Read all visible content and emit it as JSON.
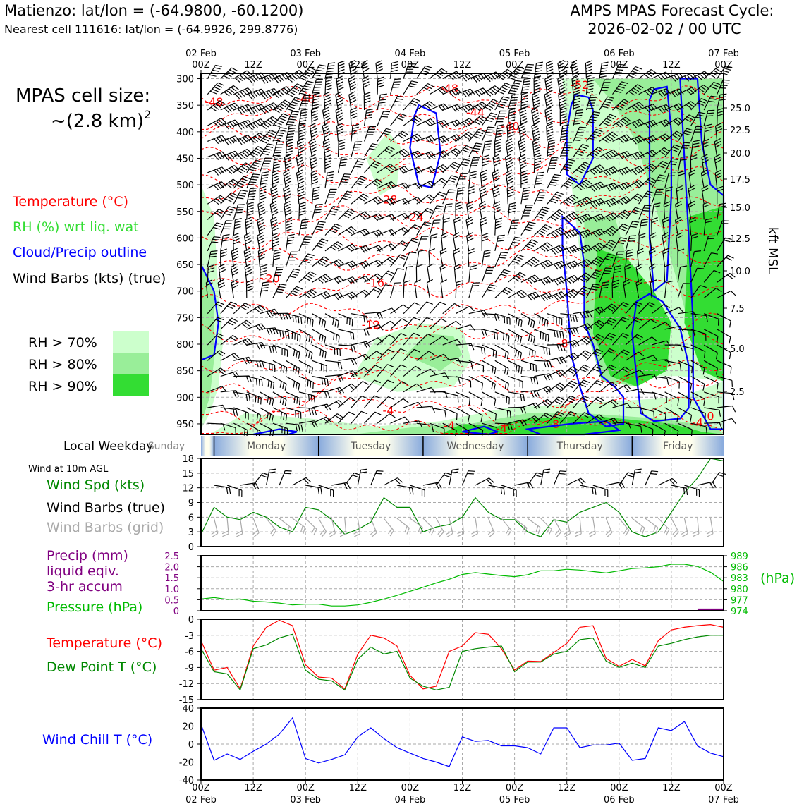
{
  "header": {
    "station_line": "Matienzo: lat/lon = (-64.9800, -60.1200)",
    "cell_line": "Nearest cell 111616: lat/lon = (-64.9926, 299.8776)",
    "cycle_title": "AMPS MPAS Forecast Cycle:",
    "cycle_time": "2026-02-02 / 00 UTC"
  },
  "side": {
    "cell_size_label": "MPAS cell size:",
    "cell_size_value": "~(2.8 km)",
    "cell_size_exp": "2",
    "legend_temp": "Temperature (°C)",
    "legend_rh": "RH (%) wrt liq. wat",
    "legend_cloud": "Cloud/Precip outline",
    "legend_wind": "Wind Barbs (kts) (true)",
    "rh_70": "RH > 70%",
    "rh_80": "RH > 80%",
    "rh_90": "RH > 90%",
    "local_weekday": "Local Weekday",
    "wind_10m": "Wind at 10m AGL",
    "wind_spd": "Wind Spd (kts)",
    "wind_barbs_true": "Wind Barbs (true)",
    "wind_barbs_grid": "Wind Barbs (grid)",
    "precip_1": "Precip (mm)",
    "precip_2": "liquid eqiv.",
    "precip_3": "3-hr accum",
    "pressure": "Pressure (hPa)",
    "temperature": "Temperature (°C)",
    "dewpoint": "Dew Point T (°C)",
    "windchill": "Wind Chill T (°C)",
    "hpa_unit": "(hPa)",
    "kft_label": "kft MSL"
  },
  "colors": {
    "temp": "#ff0000",
    "rh": "#33dd33",
    "cloud": "#0000ff",
    "wind_spd": "#008800",
    "precip": "#800080",
    "pressure": "#00bb00",
    "dewpoint": "#008800",
    "windchill": "#0000ff",
    "rh70": "#ccffcc",
    "rh80": "#99ee99",
    "rh90": "#33dd33"
  },
  "time_axis": {
    "top_dates": [
      "02 Feb",
      "",
      "03 Feb",
      "",
      "04 Feb",
      "",
      "05 Feb",
      "",
      "06 Feb",
      "",
      "07 Feb"
    ],
    "top_hours": [
      "00Z",
      "12Z",
      "00Z",
      "12Z",
      "00Z",
      "12Z",
      "00Z",
      "12Z",
      "00Z",
      "12Z",
      "00Z"
    ],
    "bottom_hours": [
      "00Z",
      "12Z",
      "00Z",
      "12Z",
      "00Z",
      "12Z",
      "00Z",
      "12Z",
      "00Z",
      "12Z",
      "00Z"
    ],
    "bottom_dates": [
      "02 Feb",
      "",
      "03 Feb",
      "",
      "04 Feb",
      "",
      "05 Feb",
      "",
      "06 Feb",
      "",
      "07 Feb"
    ]
  },
  "weekdays": [
    "Sunday",
    "Monday",
    "Tuesday",
    "Wednesday",
    "Thursday",
    "Friday"
  ],
  "chart_data": [
    {
      "type": "heatmap",
      "title": "",
      "ylabel": "",
      "ylim": [
        970,
        290
      ],
      "yticks": [
        "300",
        "350",
        "400",
        "450",
        "500",
        "550",
        "600",
        "650",
        "700",
        "750",
        "800",
        "850",
        "900",
        "950"
      ],
      "right_ticks": [
        "25.0",
        "22.5",
        "20.0",
        "17.5",
        "15.0",
        "12.5",
        "10.0",
        "7.5",
        "5.0",
        "2.5"
      ],
      "temp_labels": [
        {
          "t": 3,
          "p": 343,
          "text": "-48"
        },
        {
          "t": 24,
          "p": 337,
          "text": "-48"
        },
        {
          "t": 57,
          "p": 318,
          "text": "-48"
        },
        {
          "t": 63,
          "p": 363,
          "text": "-44"
        },
        {
          "t": 71,
          "p": 389,
          "text": "-40"
        },
        {
          "t": 87,
          "p": 311,
          "text": "-52"
        },
        {
          "t": 43,
          "p": 527,
          "text": "-28"
        },
        {
          "t": 49,
          "p": 560,
          "text": "-24"
        },
        {
          "t": 16,
          "p": 676,
          "text": "-20"
        },
        {
          "t": 40,
          "p": 684,
          "text": "-16"
        },
        {
          "t": 39,
          "p": 763,
          "text": "-12"
        },
        {
          "t": 83,
          "p": 798,
          "text": "-8"
        },
        {
          "t": 43,
          "p": 924,
          "text": "-4"
        },
        {
          "t": 57,
          "p": 953,
          "text": "-4"
        },
        {
          "t": 69,
          "p": 958,
          "text": "-4"
        },
        {
          "t": 81,
          "p": 950,
          "text": "-8"
        },
        {
          "t": 114,
          "p": 947,
          "text": "-4"
        },
        {
          "t": 117,
          "p": 935,
          "text": "0"
        }
      ]
    },
    {
      "type": "line",
      "title": "",
      "ylim": [
        0,
        18
      ],
      "yticks": [
        "0",
        "3",
        "6",
        "9",
        "12",
        "15",
        "18"
      ],
      "x": [
        0,
        3,
        6,
        9,
        12,
        15,
        18,
        21,
        24,
        27,
        30,
        33,
        36,
        39,
        42,
        45,
        48,
        51,
        54,
        57,
        60,
        63,
        66,
        69,
        72,
        75,
        78,
        81,
        84,
        87,
        90,
        93,
        96,
        99,
        102,
        105,
        108,
        111,
        114,
        117,
        120
      ],
      "series": [
        {
          "name": "Wind Spd (kts)",
          "values": [
            2.5,
            8,
            6,
            5.5,
            7,
            6,
            4,
            3,
            8,
            7.5,
            5.5,
            2.5,
            3.5,
            5,
            10,
            8,
            8,
            3,
            4,
            4.5,
            6,
            10,
            7,
            5.5,
            5.5,
            3,
            2,
            5.5,
            5,
            7,
            8,
            9,
            7,
            3,
            2,
            3,
            7,
            11,
            14,
            18,
            17.5
          ]
        }
      ]
    },
    {
      "type": "line",
      "title": "",
      "ylim": [
        0,
        2.5
      ],
      "yticks": [
        "0",
        "0.5",
        "1.0",
        "1.5",
        "2.0",
        "2.5"
      ],
      "y2lim": [
        974,
        989
      ],
      "y2ticks": [
        "974",
        "977",
        "980",
        "983",
        "986",
        "989"
      ],
      "x": [
        0,
        3,
        6,
        9,
        12,
        15,
        18,
        21,
        24,
        27,
        30,
        33,
        36,
        39,
        42,
        45,
        48,
        51,
        54,
        57,
        60,
        63,
        66,
        69,
        72,
        75,
        78,
        81,
        84,
        87,
        90,
        93,
        96,
        99,
        102,
        105,
        108,
        111,
        114,
        117,
        120
      ],
      "series": [
        {
          "name": "Pressure (hPa)",
          "values": [
            977.2,
            977.6,
            977.1,
            977.2,
            976.6,
            976.4,
            976.1,
            975.6,
            975.8,
            975.8,
            975.3,
            975.3,
            975.6,
            976.3,
            977.2,
            978.2,
            979.3,
            980.4,
            981.6,
            982.6,
            983.9,
            984.4,
            984.0,
            983.6,
            983.3,
            983.8,
            984.9,
            984.9,
            985.3,
            985.1,
            984.7,
            984.3,
            984.9,
            985.5,
            985.7,
            986.0,
            986.7,
            986.7,
            986.1,
            984.5,
            982.0
          ]
        },
        {
          "name": "Precip (mm)",
          "values": [
            0,
            0,
            0,
            0,
            0,
            0,
            0,
            0,
            0,
            0,
            0,
            0,
            0,
            0,
            0,
            0,
            0,
            0,
            0,
            0,
            0,
            0,
            0,
            0,
            0,
            0,
            0,
            0,
            0,
            0,
            0,
            0,
            0,
            0,
            0,
            0,
            0,
            0,
            0,
            0.1,
            0.1
          ]
        }
      ]
    },
    {
      "type": "line",
      "title": "",
      "ylim": [
        -15,
        0
      ],
      "yticks": [
        "-15",
        "-12",
        "-9",
        "-6",
        "-3",
        "0"
      ],
      "x": [
        0,
        3,
        6,
        9,
        12,
        15,
        18,
        21,
        24,
        27,
        30,
        33,
        36,
        39,
        42,
        45,
        48,
        51,
        54,
        57,
        60,
        63,
        66,
        69,
        72,
        75,
        78,
        81,
        84,
        87,
        90,
        93,
        96,
        99,
        102,
        105,
        108,
        111,
        114,
        117,
        120
      ],
      "series": [
        {
          "name": "Temperature (°C)",
          "values": [
            -4,
            -9.5,
            -9,
            -13,
            -5,
            -1.5,
            -0.2,
            -1.2,
            -8.5,
            -10.8,
            -11,
            -13,
            -6.5,
            -3,
            -3.5,
            -5,
            -10.5,
            -13,
            -12.5,
            -6,
            -5,
            -2.5,
            -2.8,
            -5.5,
            -9.5,
            -7.8,
            -7.9,
            -6.2,
            -4.5,
            -1.5,
            -1.2,
            -7.3,
            -8.8,
            -7.5,
            -8.7,
            -4,
            -2,
            -1.5,
            -1.2,
            -1,
            -1.5
          ]
        },
        {
          "name": "Dew Point T (°C)",
          "values": [
            -5.5,
            -9.8,
            -10.2,
            -13.2,
            -5.5,
            -4.8,
            -3.5,
            -2.8,
            -9.5,
            -11.2,
            -11.5,
            -13.2,
            -7.5,
            -5.2,
            -6.5,
            -6,
            -11,
            -12.5,
            -13.2,
            -12.7,
            -6,
            -5.5,
            -5.2,
            -5,
            -9.8,
            -8,
            -8,
            -6.5,
            -6,
            -3.8,
            -3.5,
            -7.8,
            -9,
            -8.2,
            -9,
            -5,
            -4.5,
            -3.8,
            -3.3,
            -3,
            -3
          ]
        }
      ]
    },
    {
      "type": "line",
      "title": "",
      "ylim": [
        -40,
        40
      ],
      "yticks": [
        "-40",
        "-20",
        "0",
        "20",
        "40"
      ],
      "x": [
        0,
        3,
        6,
        9,
        12,
        15,
        18,
        21,
        24,
        27,
        30,
        33,
        36,
        39,
        42,
        45,
        48,
        51,
        54,
        57,
        60,
        63,
        66,
        69,
        72,
        75,
        78,
        81,
        84,
        87,
        90,
        93,
        96,
        99,
        102,
        105,
        108,
        111,
        114,
        117,
        120
      ],
      "series": [
        {
          "name": "Wind Chill T (°C)",
          "values": [
            22,
            -18,
            -11,
            -17,
            -8,
            0,
            11,
            29,
            -16,
            -21,
            -17,
            -12,
            8,
            18,
            6,
            -4,
            -10,
            -16,
            -20,
            -25,
            8,
            3,
            4,
            -2,
            -2,
            -4,
            -11,
            18,
            18,
            -4,
            -1,
            -1,
            1,
            -18,
            -16,
            18,
            15,
            25,
            -2,
            -10,
            -14
          ]
        }
      ]
    }
  ]
}
